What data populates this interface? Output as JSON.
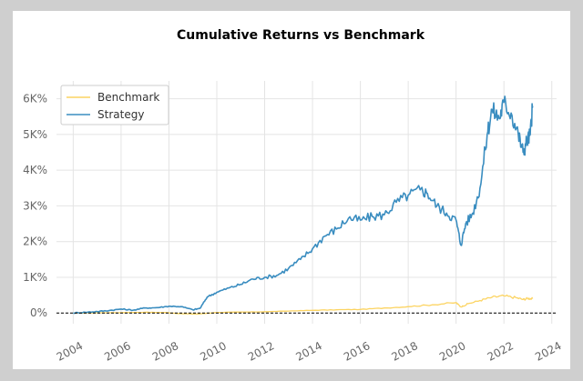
{
  "chart_data": {
    "type": "line",
    "title": "Cumulative Returns vs Benchmark",
    "xlabel": "",
    "ylabel": "",
    "xlim": [
      2003.3,
      2024.2
    ],
    "ylim": [
      -300,
      6500
    ],
    "x_ticks": [
      2004,
      2006,
      2008,
      2010,
      2012,
      2014,
      2016,
      2018,
      2020,
      2022,
      2024
    ],
    "x_tick_labels": [
      "2004",
      "2006",
      "2008",
      "2010",
      "2012",
      "2014",
      "2016",
      "2018",
      "2020",
      "2022",
      "2024"
    ],
    "y_ticks": [
      0,
      1000,
      2000,
      3000,
      4000,
      5000,
      6000
    ],
    "y_tick_labels": [
      "0%",
      "1K%",
      "2K%",
      "3K%",
      "4K%",
      "5K%",
      "6K%"
    ],
    "grid": true,
    "legend_position": "top-left",
    "zero_line": true,
    "series": [
      {
        "name": "Benchmark",
        "color": "#fcd462",
        "x": [
          2004.0,
          2005.0,
          2006.0,
          2007.0,
          2007.8,
          2008.5,
          2009.2,
          2010.0,
          2011.0,
          2012.0,
          2013.0,
          2014.0,
          2015.0,
          2016.0,
          2017.0,
          2018.0,
          2019.0,
          2020.0,
          2020.2,
          2020.5,
          2021.0,
          2021.5,
          2022.0,
          2022.5,
          2022.8,
          2023.0,
          2023.2
        ],
        "values": [
          0,
          5,
          10,
          20,
          15,
          -20,
          -30,
          15,
          25,
          35,
          55,
          75,
          90,
          100,
          140,
          180,
          230,
          290,
          170,
          260,
          350,
          440,
          480,
          430,
          380,
          410,
          400
        ]
      },
      {
        "name": "Strategy",
        "color": "#3a8dc0",
        "x": [
          2004.0,
          2004.5,
          2005.0,
          2005.5,
          2006.0,
          2006.5,
          2007.0,
          2007.5,
          2008.0,
          2008.5,
          2009.0,
          2009.3,
          2009.6,
          2010.0,
          2010.5,
          2011.0,
          2011.5,
          2012.0,
          2012.5,
          2013.0,
          2013.5,
          2014.0,
          2014.5,
          2015.0,
          2015.5,
          2016.0,
          2016.5,
          2017.0,
          2017.5,
          2018.0,
          2018.5,
          2018.8,
          2019.2,
          2019.6,
          2020.0,
          2020.2,
          2020.4,
          2020.7,
          2021.0,
          2021.3,
          2021.5,
          2021.8,
          2022.0,
          2022.3,
          2022.6,
          2022.8,
          2022.95,
          2023.1,
          2023.2
        ],
        "values": [
          0,
          20,
          40,
          70,
          110,
          80,
          140,
          150,
          190,
          180,
          90,
          130,
          450,
          580,
          700,
          800,
          950,
          1000,
          1050,
          1250,
          1500,
          1800,
          2150,
          2350,
          2650,
          2600,
          2700,
          2750,
          3100,
          3300,
          3450,
          3350,
          3000,
          2800,
          2600,
          1900,
          2500,
          2800,
          3500,
          5000,
          5700,
          5450,
          5900,
          5600,
          5000,
          4500,
          4800,
          5000,
          5800
        ]
      }
    ]
  }
}
